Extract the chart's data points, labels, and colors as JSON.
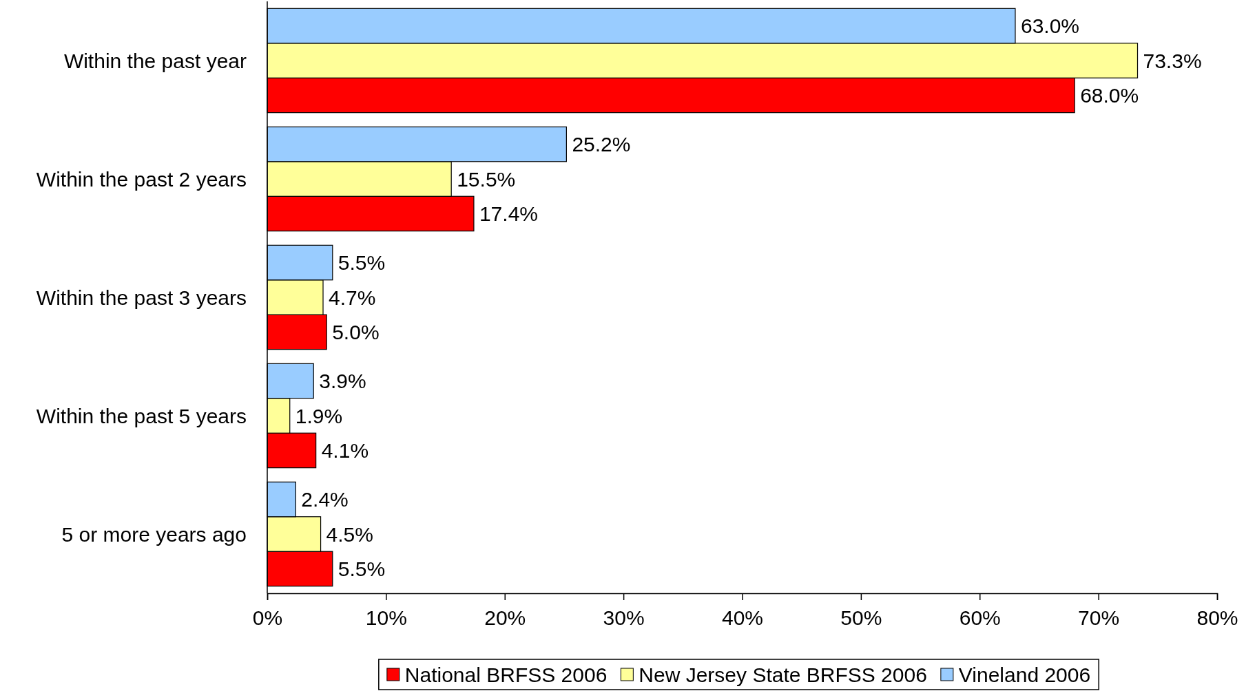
{
  "chart_data": {
    "type": "bar",
    "orientation": "horizontal",
    "categories": [
      "Within the past year",
      "Within the past 2 years",
      "Within the past 3 years",
      "Within the past 5 years",
      "5 or more years ago"
    ],
    "series": [
      {
        "name": "National BRFSS 2006",
        "color": "#ff0000",
        "values": [
          68.0,
          17.4,
          5.0,
          4.1,
          5.5
        ],
        "value_labels": [
          "68.0%",
          "17.4%",
          "5.0%",
          "4.1%",
          "5.5%"
        ]
      },
      {
        "name": "New Jersey State BRFSS 2006",
        "color": "#ffff99",
        "values": [
          73.3,
          15.5,
          4.7,
          1.9,
          4.5
        ],
        "value_labels": [
          "73.3%",
          "15.5%",
          "4.7%",
          "1.9%",
          "4.5%"
        ]
      },
      {
        "name": "Vineland 2006",
        "color": "#99ccff",
        "values": [
          63.0,
          25.2,
          5.5,
          3.9,
          2.4
        ],
        "value_labels": [
          "63.0%",
          "25.2%",
          "5.5%",
          "3.9%",
          "2.4%"
        ]
      }
    ],
    "xlim": [
      0,
      80
    ],
    "xticks": [
      {
        "value": 0,
        "label": "0%"
      },
      {
        "value": 10,
        "label": "10%"
      },
      {
        "value": 20,
        "label": "20%"
      },
      {
        "value": 30,
        "label": "30%"
      },
      {
        "value": 40,
        "label": "40%"
      },
      {
        "value": 50,
        "label": "50%"
      },
      {
        "value": 60,
        "label": "60%"
      },
      {
        "value": 70,
        "label": "70%"
      },
      {
        "value": 80,
        "label": "80%"
      }
    ],
    "legend": "bottom",
    "grid": false
  }
}
